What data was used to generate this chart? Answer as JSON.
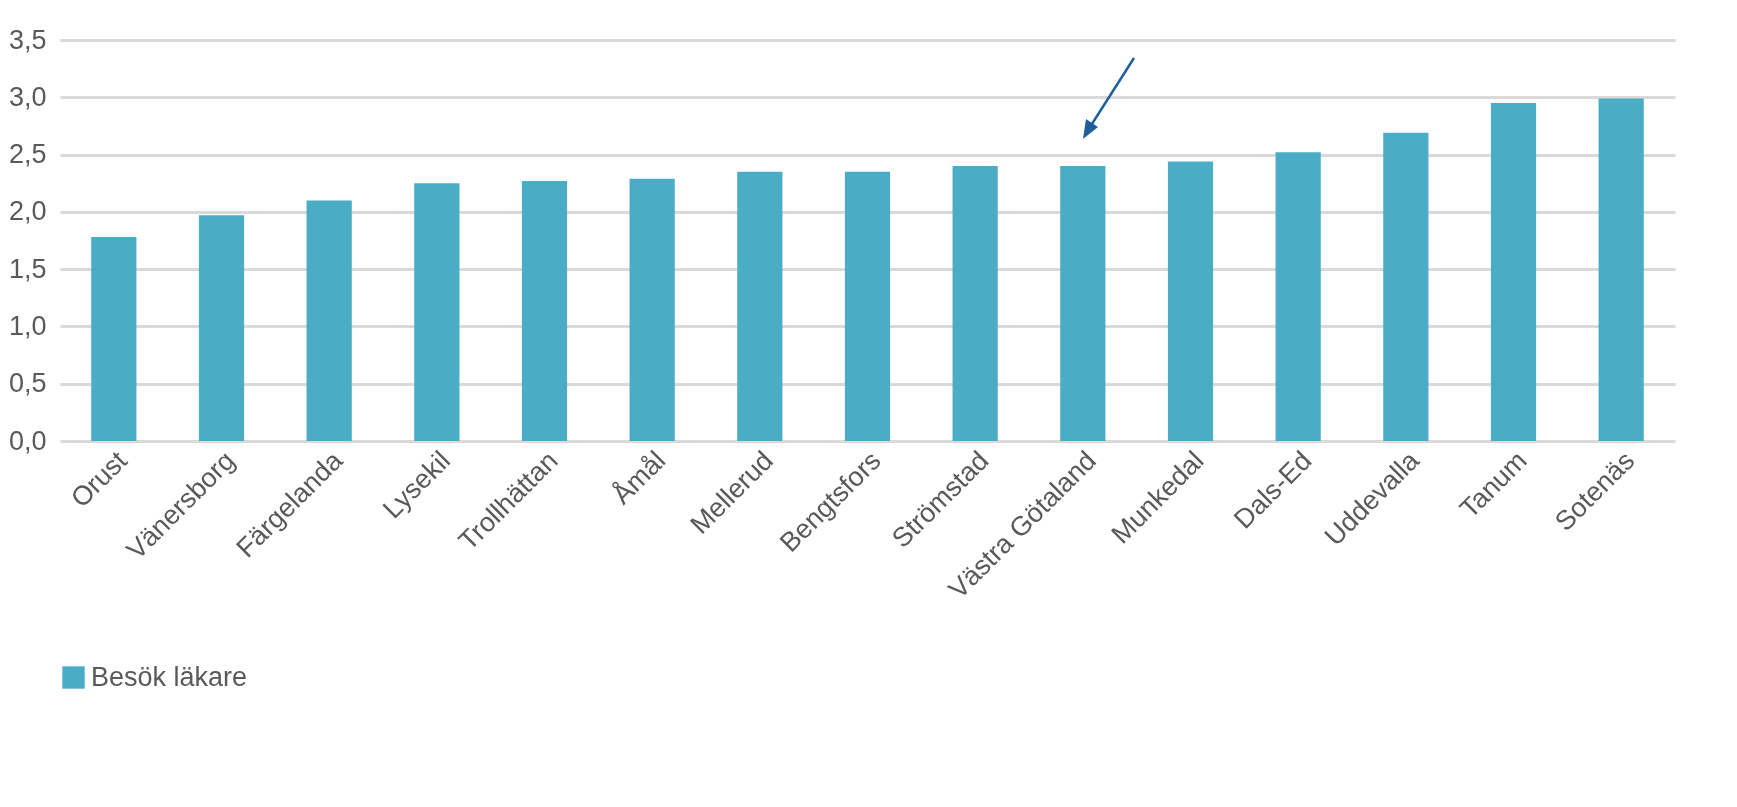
{
  "chart_data": {
    "type": "bar",
    "categories": [
      "Orust",
      "Vänersborg",
      "Färgelanda",
      "Lysekil",
      "Trollhättan",
      "Åmål",
      "Mellerud",
      "Bengtsfors",
      "Strömstad",
      "Västra Götaland",
      "Munkedal",
      "Dals-Ed",
      "Uddevalla",
      "Tanum",
      "Sotenäs"
    ],
    "series": [
      {
        "name": "Besök läkare",
        "color": "#4bacc6",
        "values": [
          1.78,
          1.97,
          2.1,
          2.25,
          2.27,
          2.29,
          2.35,
          2.35,
          2.4,
          2.4,
          2.44,
          2.52,
          2.69,
          2.95,
          2.99
        ]
      }
    ],
    "ylim": [
      0,
      3.5
    ],
    "yticks": [
      {
        "value": 0,
        "label": "0,0"
      },
      {
        "value": 0.5,
        "label": "0,5"
      },
      {
        "value": 1,
        "label": "1,0"
      },
      {
        "value": 1.5,
        "label": "1,5"
      },
      {
        "value": 2,
        "label": "2,0"
      },
      {
        "value": 2.5,
        "label": "2,5"
      },
      {
        "value": 3,
        "label": "3,0"
      },
      {
        "value": 3.5,
        "label": "3,5"
      }
    ],
    "grid": "y",
    "legend": "bottom"
  }
}
